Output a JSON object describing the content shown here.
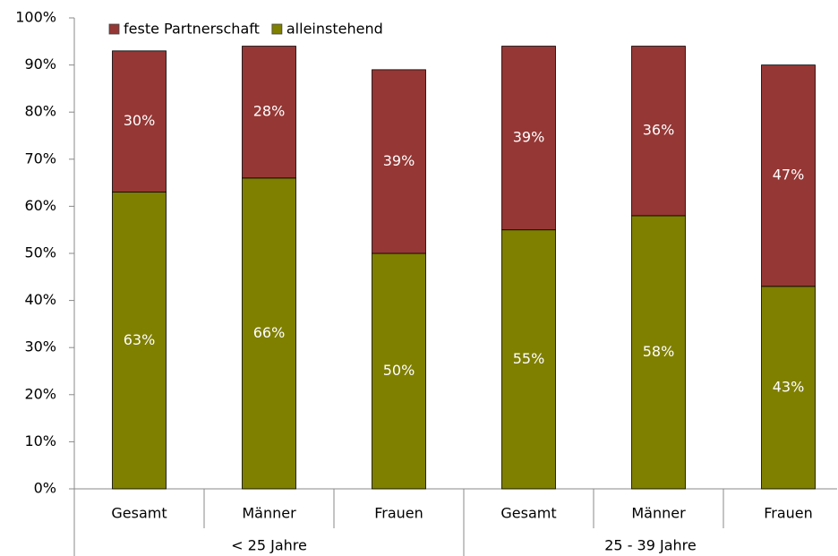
{
  "chart_data": {
    "type": "stacked_bar",
    "categories": [
      "Gesamt",
      "Männer",
      "Frauen",
      "Gesamt",
      "Männer",
      "Frauen"
    ],
    "groups": [
      {
        "label": "< 25 Jahre",
        "span": 3
      },
      {
        "label": "25 - 39 Jahre",
        "span": 3
      }
    ],
    "series": [
      {
        "name": "feste Partnerschaft",
        "color": "#953735",
        "values": [
          30,
          28,
          39,
          39,
          36,
          47
        ],
        "value_labels": [
          "30%",
          "28%",
          "39%",
          "39%",
          "36%",
          "47%"
        ]
      },
      {
        "name": "alleinstehend",
        "color": "#7f7f00",
        "values": [
          63,
          66,
          50,
          55,
          58,
          43
        ],
        "value_labels": [
          "63%",
          "66%",
          "50%",
          "55%",
          "58%",
          "43%"
        ]
      }
    ],
    "ylim": [
      0,
      100
    ],
    "yticks": [
      {
        "value": 0,
        "label": "0%"
      },
      {
        "value": 10,
        "label": "10%"
      },
      {
        "value": 20,
        "label": "20%"
      },
      {
        "value": 30,
        "label": "30%"
      },
      {
        "value": 40,
        "label": "40%"
      },
      {
        "value": 50,
        "label": "50%"
      },
      {
        "value": 60,
        "label": "60%"
      },
      {
        "value": 70,
        "label": "70%"
      },
      {
        "value": 80,
        "label": "80%"
      },
      {
        "value": 90,
        "label": "90%"
      },
      {
        "value": 100,
        "label": "100%"
      }
    ],
    "legend": "top-left",
    "grid": false
  }
}
